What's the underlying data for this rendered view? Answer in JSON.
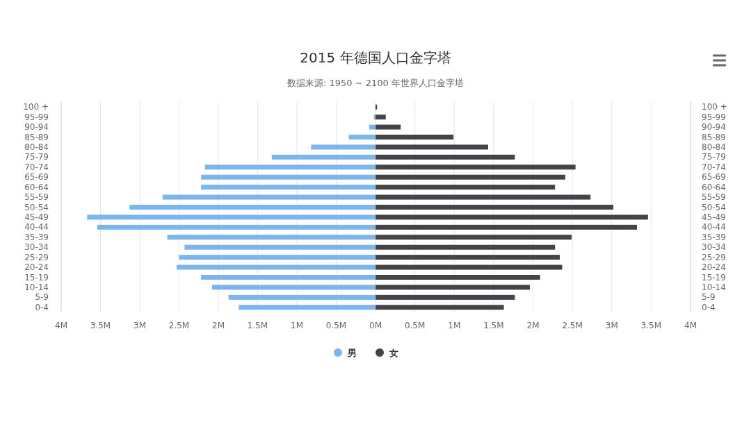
{
  "chart_data": [
    {
      "type": "bar",
      "orientation": "horizontal",
      "title": "2015 年德国人口金字塔",
      "subtitle": "数据来源: 1950 ~ 2100 年世界人口金字塔",
      "categories": [
        "100 +",
        "95-99",
        "90-94",
        "85-89",
        "80-84",
        "75-79",
        "70-74",
        "65-69",
        "60-64",
        "55-59",
        "50-54",
        "45-49",
        "40-44",
        "35-39",
        "30-34",
        "25-29",
        "20-24",
        "15-19",
        "10-14",
        "5-9",
        "0-4"
      ],
      "series": [
        {
          "name": "男",
          "color": "#7cb5ec",
          "values": [
            null,
            0.02,
            0.08,
            0.34,
            0.82,
            1.32,
            2.17,
            2.22,
            2.22,
            2.71,
            3.13,
            3.67,
            3.54,
            2.65,
            2.43,
            2.5,
            2.53,
            2.22,
            2.08,
            1.87,
            1.74
          ]
        }
      ],
      "xlim": [
        4,
        0
      ],
      "xticks": [
        {
          "value": 4,
          "label": "4M"
        },
        {
          "value": 3.5,
          "label": "3.5M"
        },
        {
          "value": 3,
          "label": "3M"
        },
        {
          "value": 2.5,
          "label": "2.5M"
        },
        {
          "value": 2,
          "label": "2M"
        },
        {
          "value": 1.5,
          "label": "1.5M"
        },
        {
          "value": 1,
          "label": "1M"
        },
        {
          "value": 0.5,
          "label": "0.5M"
        }
      ],
      "grid": "x",
      "legend": "bottom",
      "marker": "circle"
    },
    {
      "type": "bar",
      "orientation": "horizontal",
      "categories": [
        "100 +",
        "95-99",
        "90-94",
        "85-89",
        "80-84",
        "75-79",
        "70-74",
        "65-69",
        "60-64",
        "55-59",
        "50-54",
        "45-49",
        "40-44",
        "35-39",
        "30-34",
        "25-29",
        "20-24",
        "15-19",
        "10-14",
        "5-9",
        "0-4"
      ],
      "series": [
        {
          "name": "女",
          "color": "#434348",
          "values": [
            0.02,
            0.13,
            0.32,
            0.99,
            1.43,
            1.77,
            2.54,
            2.41,
            2.28,
            2.73,
            3.02,
            3.46,
            3.32,
            2.49,
            2.28,
            2.34,
            2.37,
            2.09,
            1.96,
            1.77,
            1.63
          ]
        }
      ],
      "xlim": [
        0,
        4
      ],
      "xticks": [
        {
          "value": 0,
          "label": "0M"
        },
        {
          "value": 0.5,
          "label": "0.5M"
        },
        {
          "value": 1,
          "label": "1M"
        },
        {
          "value": 1.5,
          "label": "1.5M"
        },
        {
          "value": 2,
          "label": "2M"
        },
        {
          "value": 2.5,
          "label": "2.5M"
        },
        {
          "value": 3,
          "label": "3M"
        },
        {
          "value": 3.5,
          "label": "3.5M"
        },
        {
          "value": 4,
          "label": "4M"
        }
      ],
      "grid": "x",
      "legend": "bottom",
      "marker": "circle"
    }
  ]
}
